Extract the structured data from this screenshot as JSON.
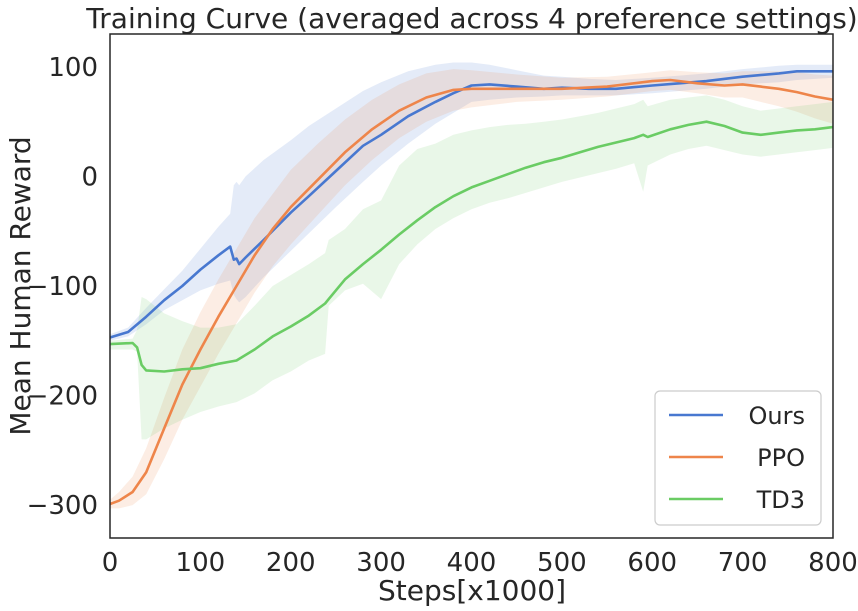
{
  "chart_data": {
    "type": "line",
    "title": "Training Curve (averaged across 4 preference settings)",
    "xlabel": "Steps[x1000]",
    "ylabel": "Mean Human Reward",
    "xlim": [
      0,
      800
    ],
    "ylim": [
      -330,
      130
    ],
    "xticks": [
      0,
      100,
      200,
      300,
      400,
      500,
      600,
      700,
      800
    ],
    "yticks": [
      100,
      0,
      -100,
      -200,
      -300
    ],
    "ytick_labels": [
      "100",
      "0",
      "−100",
      "−200",
      "−300"
    ],
    "legend_position": "bottom-right",
    "series": [
      {
        "name": "Ours",
        "color": "#4878d0",
        "x": [
          0,
          20,
          40,
          60,
          80,
          100,
          120,
          133,
          137,
          140,
          143,
          150,
          170,
          200,
          220,
          250,
          280,
          300,
          330,
          360,
          380,
          400,
          420,
          450,
          480,
          500,
          530,
          560,
          600,
          630,
          660,
          700,
          740,
          760,
          780,
          800
        ],
        "y": [
          -147,
          -142,
          -128,
          -113,
          -100,
          -85,
          -72,
          -64,
          -76,
          -75,
          -80,
          -74,
          -58,
          -33,
          -18,
          5,
          28,
          38,
          55,
          68,
          76,
          83,
          84,
          82,
          80,
          81,
          80,
          80,
          83,
          85,
          87,
          91,
          94,
          96,
          96,
          96
        ],
        "lower": [
          -150,
          -146,
          -135,
          -122,
          -113,
          -104,
          -98,
          -95,
          -108,
          -112,
          -115,
          -110,
          -92,
          -68,
          -52,
          -28,
          -5,
          10,
          30,
          48,
          58,
          68,
          70,
          72,
          73,
          74,
          74,
          74,
          76,
          78,
          80,
          84,
          86,
          88,
          89,
          90
        ],
        "upper": [
          -144,
          -138,
          -120,
          -103,
          -86,
          -66,
          -46,
          -34,
          -8,
          -5,
          -8,
          0,
          15,
          33,
          46,
          62,
          78,
          86,
          96,
          102,
          104,
          104,
          102,
          97,
          92,
          91,
          89,
          88,
          90,
          92,
          94,
          98,
          101,
          102,
          102,
          102
        ]
      },
      {
        "name": "PPO",
        "color": "#ee854a",
        "x": [
          0,
          10,
          25,
          40,
          60,
          80,
          100,
          120,
          140,
          160,
          180,
          200,
          230,
          260,
          290,
          320,
          350,
          380,
          400,
          450,
          500,
          550,
          600,
          620,
          650,
          680,
          700,
          720,
          740,
          760,
          780,
          800
        ],
        "y": [
          -299,
          -296,
          -288,
          -270,
          -230,
          -190,
          -158,
          -128,
          -100,
          -72,
          -48,
          -28,
          -3,
          22,
          43,
          60,
          72,
          79,
          80,
          80,
          80,
          82,
          87,
          88,
          85,
          83,
          84,
          82,
          80,
          77,
          73,
          70
        ],
        "lower": [
          -303,
          -303,
          -300,
          -290,
          -258,
          -222,
          -192,
          -162,
          -134,
          -106,
          -82,
          -62,
          -35,
          -8,
          15,
          35,
          50,
          60,
          63,
          68,
          70,
          73,
          78,
          79,
          76,
          72,
          72,
          68,
          64,
          59,
          53,
          48
        ],
        "upper": [
          -295,
          -288,
          -274,
          -248,
          -202,
          -158,
          -124,
          -94,
          -66,
          -38,
          -16,
          6,
          30,
          52,
          70,
          84,
          94,
          98,
          97,
          93,
          90,
          91,
          95,
          97,
          95,
          94,
          96,
          96,
          96,
          95,
          93,
          92
        ]
      },
      {
        "name": "TD3",
        "color": "#6acc64",
        "x": [
          0,
          25,
          30,
          35,
          40,
          60,
          80,
          100,
          120,
          140,
          160,
          180,
          200,
          220,
          238,
          242,
          260,
          280,
          300,
          320,
          340,
          360,
          380,
          400,
          420,
          440,
          460,
          480,
          500,
          520,
          540,
          560,
          580,
          590,
          595,
          620,
          640,
          660,
          680,
          700,
          720,
          740,
          760,
          780,
          800
        ],
        "y": [
          -153,
          -152,
          -156,
          -172,
          -177,
          -178,
          -176,
          -175,
          -171,
          -168,
          -158,
          -146,
          -137,
          -127,
          -116,
          -112,
          -94,
          -80,
          -67,
          -53,
          -40,
          -28,
          -18,
          -10,
          -4,
          2,
          8,
          13,
          17,
          22,
          27,
          31,
          35,
          38,
          36,
          43,
          47,
          50,
          46,
          40,
          38,
          40,
          42,
          43,
          45
        ],
        "lower": [
          -158,
          -158,
          -160,
          -240,
          -240,
          -230,
          -222,
          -215,
          -210,
          -206,
          -198,
          -186,
          -178,
          -168,
          -162,
          -118,
          -104,
          -98,
          -112,
          -80,
          -62,
          -48,
          -38,
          -30,
          -24,
          -20,
          -15,
          -10,
          -5,
          -1,
          3,
          7,
          12,
          -14,
          10,
          20,
          25,
          28,
          24,
          20,
          18,
          20,
          22,
          24,
          26
        ],
        "upper": [
          -150,
          -148,
          -140,
          -110,
          -112,
          -125,
          -132,
          -138,
          -138,
          -135,
          -118,
          -100,
          -90,
          -80,
          -70,
          -58,
          -48,
          -30,
          -22,
          10,
          25,
          30,
          38,
          42,
          45,
          47,
          48,
          50,
          52,
          55,
          58,
          62,
          66,
          70,
          64,
          70,
          72,
          74,
          70,
          64,
          60,
          62,
          64,
          66,
          68
        ]
      }
    ]
  }
}
